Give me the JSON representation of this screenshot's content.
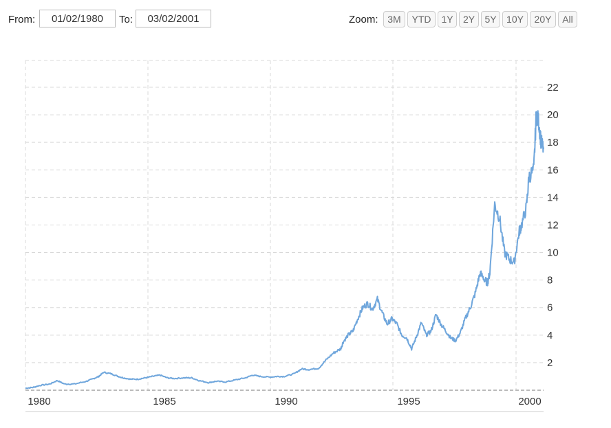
{
  "range_selector": {
    "from_label": "From:",
    "from_value": "01/02/1980",
    "to_label": "To:",
    "to_value": "03/02/2001",
    "zoom_label": "Zoom:",
    "zoom_buttons": [
      "3M",
      "YTD",
      "1Y",
      "2Y",
      "5Y",
      "10Y",
      "20Y",
      "All"
    ]
  },
  "chart_data": {
    "type": "line",
    "title": "",
    "xlabel": "",
    "ylabel": "",
    "x_ticks": [
      "1980",
      "1985",
      "1990",
      "1995",
      "2000"
    ],
    "y_ticks": [
      2,
      4,
      6,
      8,
      10,
      12,
      14,
      16,
      18,
      20,
      22
    ],
    "xlim": [
      1980.0,
      2001.2
    ],
    "ylim": [
      0,
      22
    ],
    "grid": true,
    "line_color": "#6fa6dc",
    "series": [
      {
        "x": [
          1980.0,
          1980.3,
          1980.6,
          1981.0,
          1981.3,
          1981.6,
          1982.0,
          1982.5,
          1982.8,
          1983.0,
          1983.2,
          1983.5,
          1983.8,
          1984.0,
          1984.3,
          1984.6,
          1984.9,
          1985.2,
          1985.5,
          1985.8,
          1986.1,
          1986.5,
          1986.8,
          1987.1,
          1987.5,
          1987.8,
          1988.2,
          1988.6,
          1989.0,
          1989.3,
          1989.6,
          1990.0,
          1990.3,
          1990.6,
          1991.0,
          1991.3,
          1991.6,
          1992.0,
          1992.3,
          1992.6,
          1992.9,
          1993.0,
          1993.2,
          1993.4,
          1993.6,
          1993.8,
          1994.0,
          1994.2,
          1994.4,
          1994.6,
          1994.8,
          1995.0,
          1995.2,
          1995.4,
          1995.6,
          1995.8,
          1996.0,
          1996.2,
          1996.4,
          1996.6,
          1996.8,
          1997.0,
          1997.2,
          1997.4,
          1997.6,
          1997.8,
          1998.0,
          1998.2,
          1998.4,
          1998.6,
          1998.8,
          1998.9,
          1999.0,
          1999.2,
          1999.4,
          1999.6,
          1999.8,
          2000.0,
          2000.2,
          2000.3,
          2000.5,
          2000.6,
          2000.8,
          2000.9,
          2001.0,
          2001.1,
          2001.2
        ],
        "y": [
          0.15,
          0.2,
          0.35,
          0.45,
          0.7,
          0.45,
          0.45,
          0.65,
          0.85,
          1.0,
          1.3,
          1.2,
          1.0,
          0.9,
          0.8,
          0.8,
          0.9,
          1.0,
          1.1,
          0.9,
          0.85,
          0.9,
          0.9,
          0.7,
          0.55,
          0.65,
          0.6,
          0.75,
          0.9,
          1.1,
          1.0,
          0.95,
          1.0,
          1.0,
          1.2,
          1.55,
          1.5,
          1.6,
          2.2,
          2.7,
          3.0,
          3.5,
          4.0,
          4.3,
          5.2,
          6.0,
          6.3,
          5.9,
          6.6,
          5.6,
          4.8,
          5.2,
          4.8,
          4.0,
          3.8,
          3.0,
          3.9,
          4.9,
          4.0,
          4.3,
          5.5,
          4.8,
          4.3,
          3.8,
          3.6,
          4.2,
          5.2,
          6.0,
          7.0,
          8.5,
          8.0,
          7.8,
          8.5,
          13.5,
          12.5,
          10.0,
          9.5,
          9.3,
          11.5,
          12.0,
          13.3,
          15.5,
          16.0,
          20.0,
          19.5,
          18.0,
          17.5
        ]
      }
    ]
  }
}
